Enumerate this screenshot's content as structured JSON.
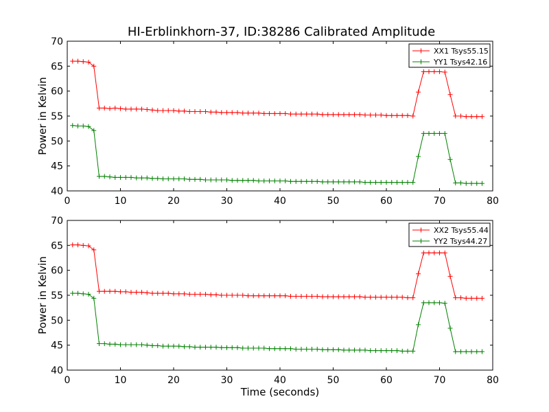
{
  "title": "HI-Erblinkhorn-37, ID:38286 Calibrated Amplitude",
  "colors": {
    "xx": "#ff0000",
    "yy": "#008000",
    "axes": "#000000",
    "background": "#ffffff"
  },
  "chart_data": [
    {
      "type": "line",
      "title": "HI-Erblinkhorn-37, ID:38286 Calibrated Amplitude",
      "xlabel": "",
      "ylabel": "Power in Kelvin",
      "xlim": [
        0,
        80
      ],
      "ylim": [
        40,
        70
      ],
      "xticks": [
        0,
        10,
        20,
        30,
        40,
        50,
        60,
        70,
        80
      ],
      "yticks": [
        40,
        45,
        50,
        55,
        60,
        65,
        70
      ],
      "grid": false,
      "legend_position": "top-right",
      "marker": "+",
      "series": [
        {
          "name": "XX1 Tsys55.15",
          "color": "#ff0000",
          "x": [
            1,
            2,
            3,
            4,
            5,
            6,
            7,
            8,
            9,
            10,
            11,
            12,
            13,
            14,
            15,
            16,
            17,
            18,
            19,
            20,
            21,
            22,
            23,
            24,
            25,
            26,
            27,
            28,
            29,
            30,
            31,
            32,
            33,
            34,
            35,
            36,
            37,
            38,
            39,
            40,
            41,
            42,
            43,
            44,
            45,
            46,
            47,
            48,
            49,
            50,
            51,
            52,
            53,
            54,
            55,
            56,
            57,
            58,
            59,
            60,
            61,
            62,
            63,
            64,
            65,
            66,
            67,
            68,
            69,
            70,
            71,
            72,
            73,
            74,
            75,
            76,
            77,
            78
          ],
          "y": [
            66.0,
            66.0,
            65.9,
            65.8,
            65.0,
            56.6,
            56.6,
            56.5,
            56.6,
            56.5,
            56.4,
            56.4,
            56.4,
            56.4,
            56.3,
            56.2,
            56.1,
            56.1,
            56.1,
            56.1,
            56.0,
            56.0,
            55.9,
            55.9,
            55.9,
            55.9,
            55.8,
            55.8,
            55.7,
            55.7,
            55.7,
            55.7,
            55.6,
            55.6,
            55.6,
            55.6,
            55.5,
            55.5,
            55.5,
            55.5,
            55.5,
            55.4,
            55.4,
            55.4,
            55.4,
            55.4,
            55.4,
            55.3,
            55.3,
            55.3,
            55.3,
            55.3,
            55.3,
            55.3,
            55.3,
            55.2,
            55.2,
            55.2,
            55.2,
            55.1,
            55.1,
            55.1,
            55.1,
            55.1,
            55.0,
            59.8,
            63.9,
            63.9,
            63.9,
            63.9,
            63.8,
            59.3,
            55.0,
            55.0,
            54.9,
            54.9,
            54.9,
            54.9
          ]
        },
        {
          "name": "YY1 Tsys42.16",
          "color": "#008000",
          "x": [
            1,
            2,
            3,
            4,
            5,
            6,
            7,
            8,
            9,
            10,
            11,
            12,
            13,
            14,
            15,
            16,
            17,
            18,
            19,
            20,
            21,
            22,
            23,
            24,
            25,
            26,
            27,
            28,
            29,
            30,
            31,
            32,
            33,
            34,
            35,
            36,
            37,
            38,
            39,
            40,
            41,
            42,
            43,
            44,
            45,
            46,
            47,
            48,
            49,
            50,
            51,
            52,
            53,
            54,
            55,
            56,
            57,
            58,
            59,
            60,
            61,
            62,
            63,
            64,
            65,
            66,
            67,
            68,
            69,
            70,
            71,
            72,
            73,
            74,
            75,
            76,
            77,
            78
          ],
          "y": [
            53.1,
            53.0,
            53.0,
            52.9,
            52.1,
            42.9,
            42.9,
            42.8,
            42.7,
            42.7,
            42.7,
            42.7,
            42.6,
            42.6,
            42.6,
            42.5,
            42.5,
            42.4,
            42.4,
            42.4,
            42.4,
            42.4,
            42.3,
            42.3,
            42.3,
            42.2,
            42.2,
            42.2,
            42.2,
            42.2,
            42.1,
            42.1,
            42.1,
            42.1,
            42.1,
            42.0,
            42.0,
            42.0,
            42.0,
            42.0,
            42.0,
            41.9,
            41.9,
            41.9,
            41.9,
            41.9,
            41.9,
            41.8,
            41.8,
            41.8,
            41.8,
            41.8,
            41.8,
            41.8,
            41.8,
            41.7,
            41.7,
            41.7,
            41.7,
            41.7,
            41.7,
            41.7,
            41.7,
            41.7,
            41.7,
            46.9,
            51.5,
            51.5,
            51.5,
            51.5,
            51.5,
            46.3,
            41.6,
            41.6,
            41.5,
            41.5,
            41.5,
            41.5
          ]
        }
      ]
    },
    {
      "type": "line",
      "title": "",
      "xlabel": "Time (seconds)",
      "ylabel": "Power in Kelvin",
      "xlim": [
        0,
        80
      ],
      "ylim": [
        40,
        70
      ],
      "xticks": [
        0,
        10,
        20,
        30,
        40,
        50,
        60,
        70,
        80
      ],
      "yticks": [
        40,
        45,
        50,
        55,
        60,
        65,
        70
      ],
      "grid": false,
      "legend_position": "top-right",
      "marker": "+",
      "series": [
        {
          "name": "XX2 Tsys55.44",
          "color": "#ff0000",
          "x": [
            1,
            2,
            3,
            4,
            5,
            6,
            7,
            8,
            9,
            10,
            11,
            12,
            13,
            14,
            15,
            16,
            17,
            18,
            19,
            20,
            21,
            22,
            23,
            24,
            25,
            26,
            27,
            28,
            29,
            30,
            31,
            32,
            33,
            34,
            35,
            36,
            37,
            38,
            39,
            40,
            41,
            42,
            43,
            44,
            45,
            46,
            47,
            48,
            49,
            50,
            51,
            52,
            53,
            54,
            55,
            56,
            57,
            58,
            59,
            60,
            61,
            62,
            63,
            64,
            65,
            66,
            67,
            68,
            69,
            70,
            71,
            72,
            73,
            74,
            75,
            76,
            77,
            78
          ],
          "y": [
            65.1,
            65.1,
            65.0,
            64.9,
            64.1,
            55.8,
            55.8,
            55.8,
            55.8,
            55.7,
            55.7,
            55.6,
            55.6,
            55.6,
            55.5,
            55.4,
            55.4,
            55.4,
            55.4,
            55.3,
            55.3,
            55.3,
            55.2,
            55.2,
            55.2,
            55.2,
            55.1,
            55.1,
            55.0,
            55.0,
            55.0,
            55.0,
            55.0,
            54.9,
            54.9,
            54.9,
            54.9,
            54.9,
            54.9,
            54.9,
            54.9,
            54.8,
            54.8,
            54.8,
            54.8,
            54.8,
            54.8,
            54.7,
            54.7,
            54.7,
            54.7,
            54.7,
            54.7,
            54.7,
            54.7,
            54.6,
            54.6,
            54.6,
            54.6,
            54.6,
            54.6,
            54.6,
            54.6,
            54.5,
            54.5,
            59.3,
            63.5,
            63.5,
            63.5,
            63.5,
            63.5,
            58.8,
            54.5,
            54.5,
            54.4,
            54.4,
            54.4,
            54.4
          ]
        },
        {
          "name": "YY2 Tsys44.27",
          "color": "#008000",
          "x": [
            1,
            2,
            3,
            4,
            5,
            6,
            7,
            8,
            9,
            10,
            11,
            12,
            13,
            14,
            15,
            16,
            17,
            18,
            19,
            20,
            21,
            22,
            23,
            24,
            25,
            26,
            27,
            28,
            29,
            30,
            31,
            32,
            33,
            34,
            35,
            36,
            37,
            38,
            39,
            40,
            41,
            42,
            43,
            44,
            45,
            46,
            47,
            48,
            49,
            50,
            51,
            52,
            53,
            54,
            55,
            56,
            57,
            58,
            59,
            60,
            61,
            62,
            63,
            64,
            65,
            66,
            67,
            68,
            69,
            70,
            71,
            72,
            73,
            74,
            75,
            76,
            77,
            78
          ],
          "y": [
            55.4,
            55.4,
            55.3,
            55.2,
            54.4,
            45.3,
            45.3,
            45.2,
            45.2,
            45.1,
            45.1,
            45.1,
            45.1,
            45.1,
            45.0,
            44.9,
            44.9,
            44.8,
            44.8,
            44.8,
            44.8,
            44.7,
            44.7,
            44.6,
            44.6,
            44.6,
            44.6,
            44.6,
            44.5,
            44.5,
            44.5,
            44.5,
            44.4,
            44.4,
            44.4,
            44.4,
            44.4,
            44.3,
            44.3,
            44.3,
            44.3,
            44.3,
            44.2,
            44.2,
            44.2,
            44.2,
            44.2,
            44.1,
            44.1,
            44.1,
            44.1,
            44.0,
            44.0,
            44.0,
            44.0,
            44.0,
            43.9,
            43.9,
            43.9,
            43.9,
            43.9,
            43.9,
            43.8,
            43.8,
            43.8,
            49.1,
            53.5,
            53.5,
            53.5,
            53.5,
            53.4,
            48.4,
            43.7,
            43.7,
            43.7,
            43.7,
            43.7,
            43.7
          ]
        }
      ]
    }
  ]
}
